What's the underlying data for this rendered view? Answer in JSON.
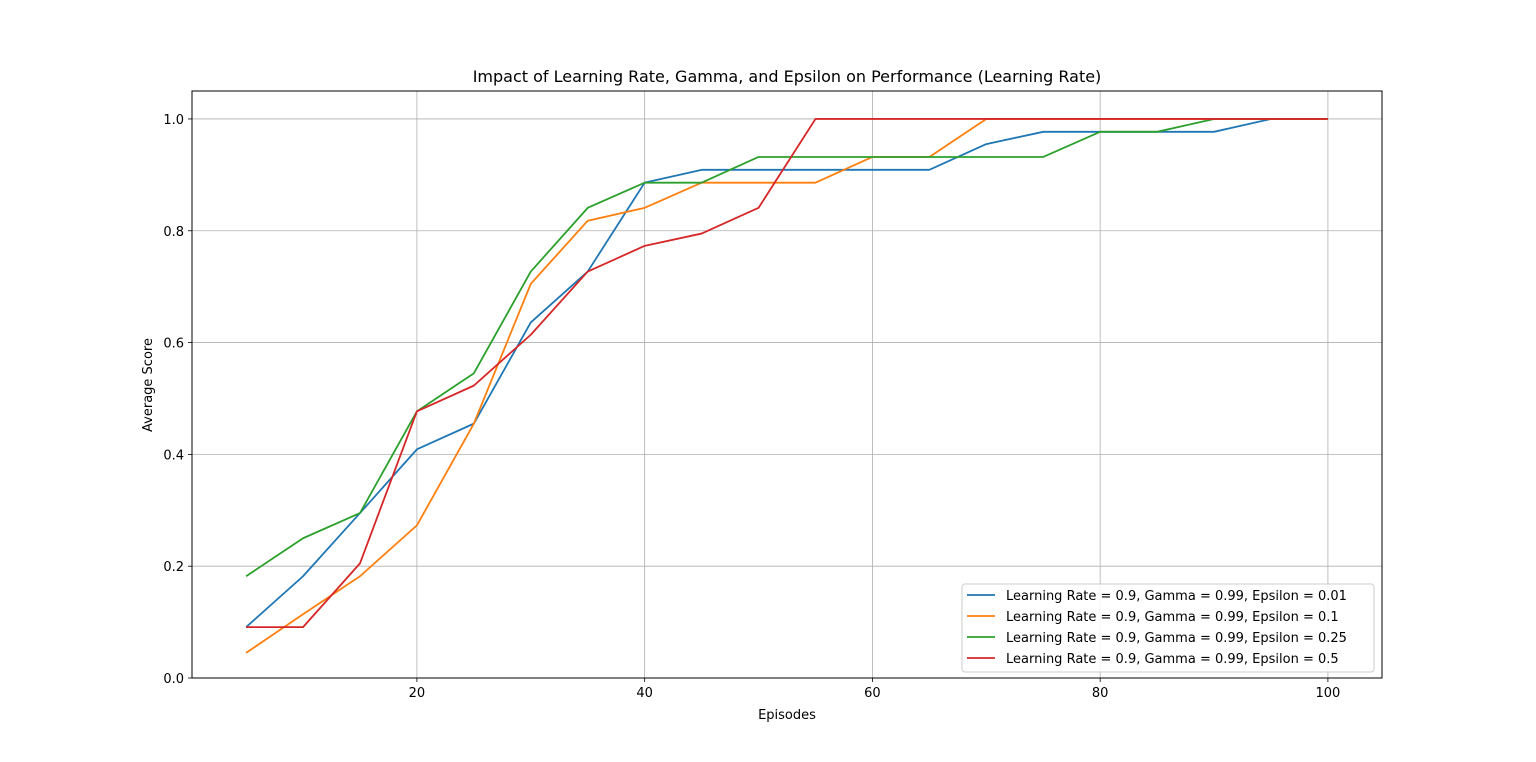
{
  "chart_data": {
    "type": "line",
    "title": "Impact of Learning Rate, Gamma, and Epsilon on Performance (Learning Rate)",
    "xlabel": "Episodes",
    "ylabel": "Average Score",
    "xlim": [
      0.25,
      104.75
    ],
    "ylim": [
      0.0,
      1.05
    ],
    "xticks": [
      20,
      40,
      60,
      80,
      100
    ],
    "xtick_labels": [
      "20",
      "40",
      "60",
      "80",
      "100"
    ],
    "yticks": [
      0.0,
      0.2,
      0.4,
      0.6,
      0.8,
      1.0
    ],
    "ytick_labels": [
      "0.0",
      "0.2",
      "0.4",
      "0.6",
      "0.8",
      "1.0"
    ],
    "grid": true,
    "legend_position": "lower-right",
    "x": [
      5,
      10,
      15,
      20,
      25,
      30,
      35,
      40,
      45,
      50,
      55,
      60,
      65,
      70,
      75,
      80,
      85,
      90,
      95,
      100
    ],
    "series": [
      {
        "name": "Learning Rate = 0.9, Gamma = 0.99, Epsilon = 0.01",
        "color": "#1f77b4",
        "values": [
          0.091,
          0.182,
          0.295,
          0.409,
          0.455,
          0.636,
          0.727,
          0.886,
          0.909,
          0.909,
          0.909,
          0.909,
          0.909,
          0.955,
          0.977,
          0.977,
          0.977,
          0.977,
          1.0,
          1.0
        ]
      },
      {
        "name": "Learning Rate = 0.9, Gamma = 0.99, Epsilon = 0.1",
        "color": "#ff7f0e",
        "values": [
          0.045,
          0.114,
          0.182,
          0.273,
          0.455,
          0.705,
          0.818,
          0.841,
          0.886,
          0.886,
          0.886,
          0.932,
          0.932,
          1.0,
          1.0,
          1.0,
          1.0,
          1.0,
          1.0,
          1.0
        ]
      },
      {
        "name": "Learning Rate = 0.9, Gamma = 0.99, Epsilon = 0.25",
        "color": "#2ca02c",
        "values": [
          0.182,
          0.25,
          0.295,
          0.477,
          0.545,
          0.727,
          0.841,
          0.886,
          0.886,
          0.932,
          0.932,
          0.932,
          0.932,
          0.932,
          0.932,
          0.977,
          0.977,
          1.0,
          1.0,
          1.0
        ]
      },
      {
        "name": "Learning Rate = 0.9, Gamma = 0.99, Epsilon = 0.5",
        "color": "#d62728",
        "values": [
          0.091,
          0.091,
          0.205,
          0.477,
          0.523,
          0.614,
          0.727,
          0.773,
          0.795,
          0.841,
          1.0,
          1.0,
          1.0,
          1.0,
          1.0,
          1.0,
          1.0,
          1.0,
          1.0,
          1.0
        ]
      }
    ]
  }
}
